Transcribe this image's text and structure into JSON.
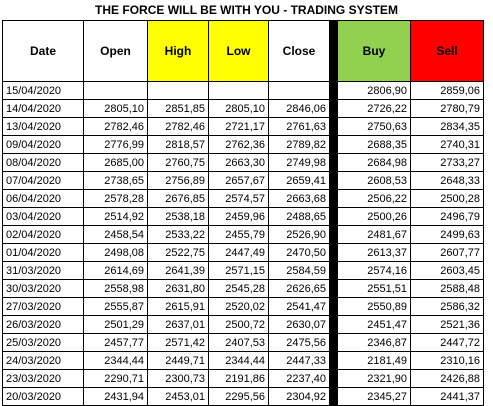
{
  "title": "THE FORCE WILL BE WITH YOU - TRADING SYSTEM",
  "colors": {
    "high": "#ffff00",
    "low": "#ffff00",
    "buy": "#92d050",
    "sell": "#ff0000",
    "separator": "#000000"
  },
  "headers": {
    "date": "Date",
    "open": "Open",
    "high": "High",
    "low": "Low",
    "close": "Close",
    "buy": "Buy",
    "sell": "Sell"
  },
  "rows": [
    {
      "date": "15/04/2020",
      "open": "",
      "high": "",
      "low": "",
      "close": "",
      "buy": "2806,90",
      "sell": "2859,06"
    },
    {
      "date": "14/04/2020",
      "open": "2805,10",
      "high": "2851,85",
      "low": "2805,10",
      "close": "2846,06",
      "buy": "2726,22",
      "sell": "2780,79"
    },
    {
      "date": "13/04/2020",
      "open": "2782,46",
      "high": "2782,46",
      "low": "2721,17",
      "close": "2761,63",
      "buy": "2750,63",
      "sell": "2834,35"
    },
    {
      "date": "09/04/2020",
      "open": "2776,99",
      "high": "2818,57",
      "low": "2762,36",
      "close": "2789,82",
      "buy": "2688,35",
      "sell": "2740,31"
    },
    {
      "date": "08/04/2020",
      "open": "2685,00",
      "high": "2760,75",
      "low": "2663,30",
      "close": "2749,98",
      "buy": "2684,98",
      "sell": "2733,27"
    },
    {
      "date": "07/04/2020",
      "open": "2738,65",
      "high": "2756,89",
      "low": "2657,67",
      "close": "2659,41",
      "buy": "2608,53",
      "sell": "2648,33"
    },
    {
      "date": "06/04/2020",
      "open": "2578,28",
      "high": "2676,85",
      "low": "2574,57",
      "close": "2663,68",
      "buy": "2506,22",
      "sell": "2500,28"
    },
    {
      "date": "03/04/2020",
      "open": "2514,92",
      "high": "2538,18",
      "low": "2459,96",
      "close": "2488,65",
      "buy": "2500,26",
      "sell": "2496,79"
    },
    {
      "date": "02/04/2020",
      "open": "2458,54",
      "high": "2533,22",
      "low": "2455,79",
      "close": "2526,90",
      "buy": "2481,67",
      "sell": "2499,63"
    },
    {
      "date": "01/04/2020",
      "open": "2498,08",
      "high": "2522,75",
      "low": "2447,49",
      "close": "2470,50",
      "buy": "2613,37",
      "sell": "2607,77"
    },
    {
      "date": "31/03/2020",
      "open": "2614,69",
      "high": "2641,39",
      "low": "2571,15",
      "close": "2584,59",
      "buy": "2574,16",
      "sell": "2603,45"
    },
    {
      "date": "30/03/2020",
      "open": "2558,98",
      "high": "2631,80",
      "low": "2545,28",
      "close": "2626,65",
      "buy": "2551,51",
      "sell": "2588,48"
    },
    {
      "date": "27/03/2020",
      "open": "2555,87",
      "high": "2615,91",
      "low": "2520,02",
      "close": "2541,47",
      "buy": "2550,89",
      "sell": "2586,32"
    },
    {
      "date": "26/03/2020",
      "open": "2501,29",
      "high": "2637,01",
      "low": "2500,72",
      "close": "2630,07",
      "buy": "2451,47",
      "sell": "2521,36"
    },
    {
      "date": "25/03/2020",
      "open": "2457,77",
      "high": "2571,42",
      "low": "2407,53",
      "close": "2475,56",
      "buy": "2346,87",
      "sell": "2447,72"
    },
    {
      "date": "24/03/2020",
      "open": "2344,44",
      "high": "2449,71",
      "low": "2344,44",
      "close": "2447,33",
      "buy": "2181,49",
      "sell": "2310,16"
    },
    {
      "date": "23/03/2020",
      "open": "2290,71",
      "high": "2300,73",
      "low": "2191,86",
      "close": "2237,40",
      "buy": "2321,90",
      "sell": "2426,88"
    },
    {
      "date": "20/03/2020",
      "open": "2431,94",
      "high": "2453,01",
      "low": "2295,56",
      "close": "2304,92",
      "buy": "2345,27",
      "sell": "2441,37"
    }
  ]
}
